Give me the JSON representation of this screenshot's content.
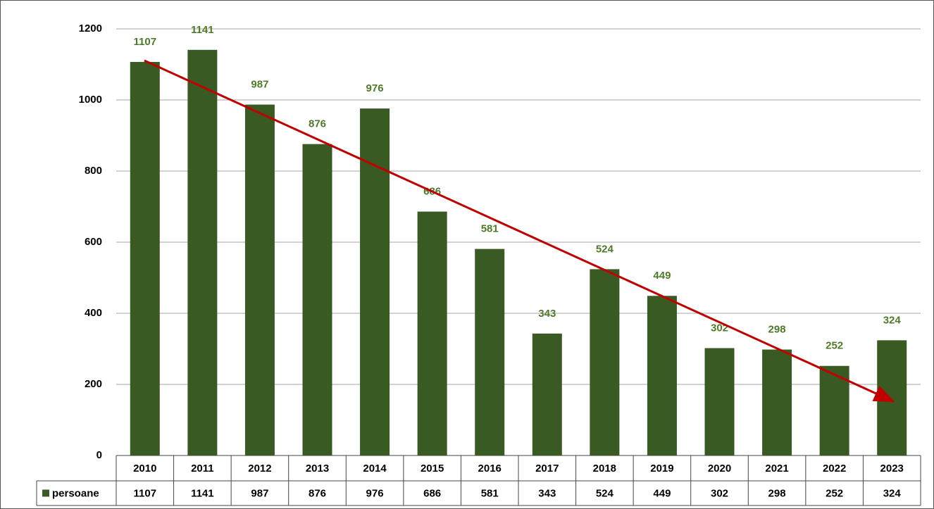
{
  "chart_data": {
    "type": "bar",
    "categories": [
      "2010",
      "2011",
      "2012",
      "2013",
      "2014",
      "2015",
      "2016",
      "2017",
      "2018",
      "2019",
      "2020",
      "2021",
      "2022",
      "2023"
    ],
    "series": [
      {
        "name": "persoane",
        "color": "#3a5a23",
        "values": [
          1107,
          1141,
          987,
          876,
          976,
          686,
          581,
          343,
          524,
          449,
          302,
          298,
          252,
          324
        ]
      }
    ],
    "label_color": "#4e7a2a",
    "ylim": [
      0,
      1200
    ],
    "yticks": [
      0,
      200,
      400,
      600,
      800,
      1000,
      1200
    ],
    "grid": true
  }
}
